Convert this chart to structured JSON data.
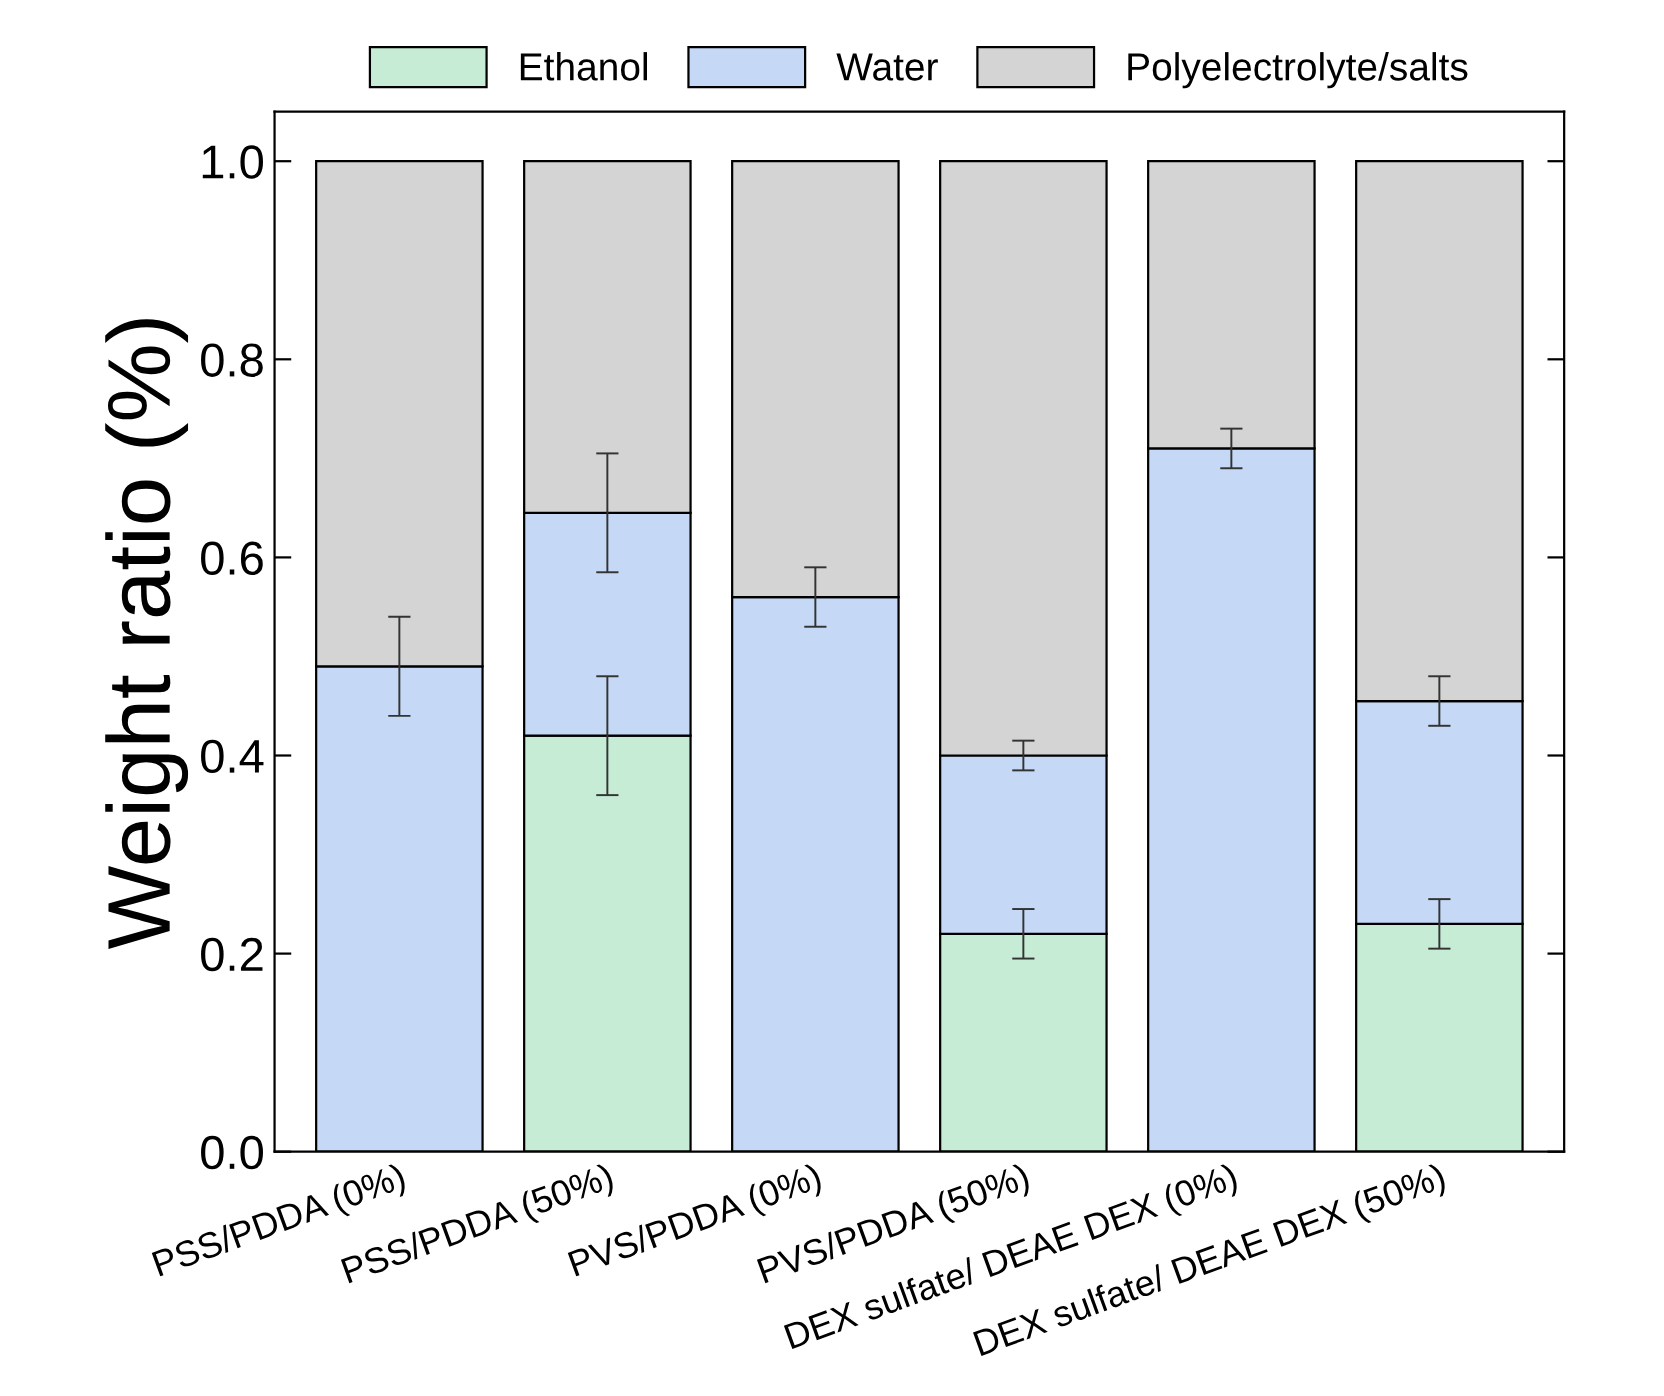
{
  "chart_data": {
    "type": "bar",
    "stacked": true,
    "ylabel": "Weight ratio (%)",
    "categories": [
      "PSS/PDDA (0%)",
      "PSS/PDDA (50%)",
      "PVS/PDDA (0%)",
      "PVS/PDDA (50%)",
      "DEX sulfate/ DEAE DEX (0%)",
      "DEX sulfate/ DEAE DEX (50%)"
    ],
    "series": [
      {
        "name": "Ethanol",
        "color": "#c6ecd6",
        "values": [
          null,
          0.42,
          null,
          0.22,
          null,
          0.23
        ],
        "errors": [
          null,
          0.06,
          null,
          0.025,
          null,
          0.025
        ]
      },
      {
        "name": "Water",
        "color": "#c5d9f6",
        "values": [
          0.49,
          0.225,
          0.56,
          0.18,
          0.71,
          0.225
        ],
        "errors": [
          0.05,
          0.06,
          0.03,
          0.015,
          0.02,
          0.025
        ]
      },
      {
        "name": "Polyelectrolyte/salts",
        "color": "#d4d4d4",
        "values": [
          0.51,
          0.355,
          0.44,
          0.6,
          0.29,
          0.545
        ]
      }
    ],
    "ylim": [
      0,
      1.05
    ],
    "yticks": [
      {
        "value": 0,
        "label": "0.0"
      },
      {
        "value": 0.2,
        "label": "0.2"
      },
      {
        "value": 0.4,
        "label": "0.4"
      },
      {
        "value": 0.6,
        "label": "0.6"
      },
      {
        "value": 0.8,
        "label": "0.8"
      },
      {
        "value": 1.0,
        "label": "1.0"
      }
    ],
    "grid": false,
    "legend": "top"
  }
}
